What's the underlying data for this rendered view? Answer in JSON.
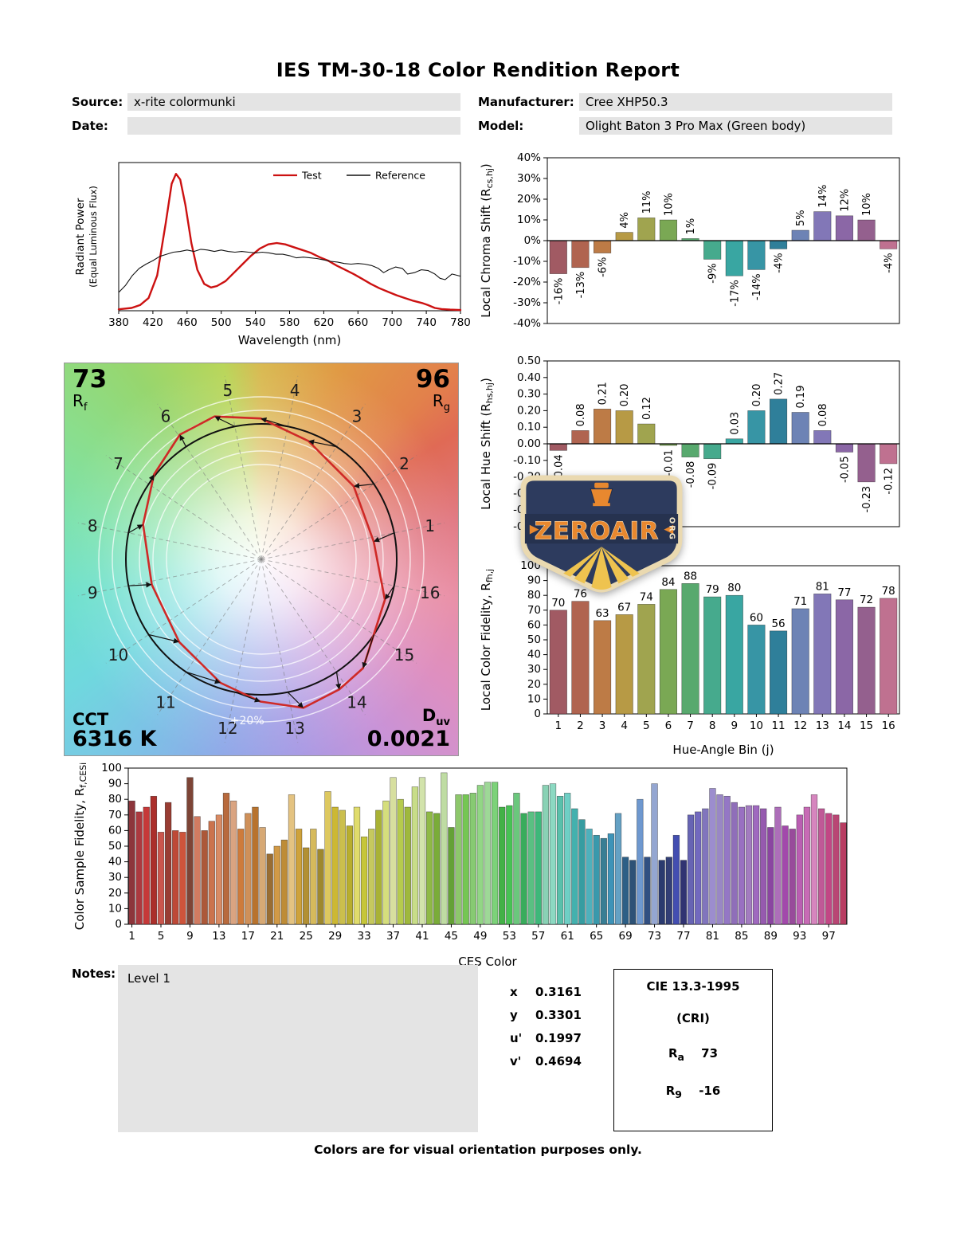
{
  "report": {
    "title": "IES TM-30-18 Color Rendition Report",
    "fields": {
      "source_label": "Source:",
      "source_value": "x-rite colormunki",
      "manufacturer_label": "Manufacturer:",
      "manufacturer_value": "Cree XHP50.3",
      "date_label": "Date:",
      "date_value": "",
      "model_label": "Model:",
      "model_value": "Olight Baton 3 Pro Max (Green body)"
    },
    "notes_label": "Notes:",
    "notes_value": "Level 1",
    "footer": "Colors are for visual orientation purposes only."
  },
  "cvg": {
    "rf_value": "73",
    "rf_sym": "R",
    "rf_sub": "f",
    "rg_value": "96",
    "rg_sym": "R",
    "rg_sub": "g",
    "cct_label": "CCT",
    "cct_value": "6316 K",
    "duv_sym": "D",
    "duv_sub": "uv",
    "duv_value": "0.0021",
    "ring_label": "+20%",
    "bins": [
      1,
      2,
      3,
      4,
      5,
      6,
      7,
      8,
      9,
      10,
      11,
      12,
      13,
      14,
      15,
      16
    ],
    "reference_color": "#111111",
    "test_color": "#cf2a27"
  },
  "chromaticity": {
    "rows": [
      {
        "label": "x",
        "value": "0.3161"
      },
      {
        "label": "y",
        "value": "0.3301"
      },
      {
        "label": "u'",
        "value": "0.1997"
      },
      {
        "label": "v'",
        "value": "0.4694"
      }
    ]
  },
  "cri_box": {
    "title": "CIE 13.3-1995",
    "subtitle": "(CRI)",
    "rows": [
      {
        "sym": "R",
        "sub": "a",
        "value": "73"
      },
      {
        "sym": "R",
        "sub": "9",
        "value": "-16"
      }
    ]
  },
  "watermark": {
    "text": "ZEROAIR",
    "suffix": "ORG"
  },
  "chart_data": [
    {
      "id": "spd",
      "type": "line",
      "xlabel": "Wavelength (nm)",
      "ylabel_lines": [
        "Radiant Power",
        "(Equal Luminous Flux)"
      ],
      "xlim": [
        380,
        780
      ],
      "xtick_step": 40,
      "ylim": [
        0,
        1.05
      ],
      "legend": [
        {
          "name": "Test",
          "color": "#cc1111"
        },
        {
          "name": "Reference",
          "color": "#111111"
        }
      ],
      "series": [
        {
          "name": "Test",
          "color": "#cc1111",
          "width": 2.4,
          "points": [
            [
              380,
              0.01
            ],
            [
              395,
              0.02
            ],
            [
              405,
              0.04
            ],
            [
              415,
              0.09
            ],
            [
              425,
              0.25
            ],
            [
              435,
              0.62
            ],
            [
              442,
              0.9
            ],
            [
              447,
              0.97
            ],
            [
              452,
              0.93
            ],
            [
              458,
              0.75
            ],
            [
              465,
              0.48
            ],
            [
              472,
              0.29
            ],
            [
              480,
              0.19
            ],
            [
              488,
              0.165
            ],
            [
              495,
              0.175
            ],
            [
              505,
              0.21
            ],
            [
              515,
              0.27
            ],
            [
              525,
              0.33
            ],
            [
              535,
              0.39
            ],
            [
              545,
              0.44
            ],
            [
              555,
              0.47
            ],
            [
              565,
              0.48
            ],
            [
              575,
              0.47
            ],
            [
              585,
              0.45
            ],
            [
              595,
              0.43
            ],
            [
              605,
              0.41
            ],
            [
              615,
              0.38
            ],
            [
              625,
              0.355
            ],
            [
              635,
              0.32
            ],
            [
              645,
              0.29
            ],
            [
              655,
              0.26
            ],
            [
              665,
              0.225
            ],
            [
              675,
              0.19
            ],
            [
              685,
              0.16
            ],
            [
              695,
              0.135
            ],
            [
              705,
              0.11
            ],
            [
              715,
              0.09
            ],
            [
              725,
              0.07
            ],
            [
              735,
              0.055
            ],
            [
              742,
              0.04
            ],
            [
              750,
              0.02
            ],
            [
              758,
              0.012
            ],
            [
              768,
              0.008
            ],
            [
              780,
              0.005
            ]
          ]
        },
        {
          "name": "Reference",
          "color": "#111111",
          "width": 1.1,
          "points": [
            [
              380,
              0.13
            ],
            [
              388,
              0.18
            ],
            [
              396,
              0.25
            ],
            [
              404,
              0.3
            ],
            [
              412,
              0.33
            ],
            [
              420,
              0.355
            ],
            [
              428,
              0.385
            ],
            [
              436,
              0.4
            ],
            [
              444,
              0.415
            ],
            [
              452,
              0.42
            ],
            [
              460,
              0.43
            ],
            [
              468,
              0.42
            ],
            [
              476,
              0.435
            ],
            [
              484,
              0.43
            ],
            [
              492,
              0.42
            ],
            [
              500,
              0.43
            ],
            [
              508,
              0.42
            ],
            [
              516,
              0.415
            ],
            [
              524,
              0.42
            ],
            [
              532,
              0.415
            ],
            [
              540,
              0.41
            ],
            [
              548,
              0.415
            ],
            [
              556,
              0.41
            ],
            [
              564,
              0.4
            ],
            [
              572,
              0.4
            ],
            [
              580,
              0.39
            ],
            [
              588,
              0.375
            ],
            [
              596,
              0.38
            ],
            [
              604,
              0.375
            ],
            [
              612,
              0.37
            ],
            [
              620,
              0.36
            ],
            [
              628,
              0.35
            ],
            [
              636,
              0.345
            ],
            [
              644,
              0.335
            ],
            [
              652,
              0.33
            ],
            [
              660,
              0.335
            ],
            [
              668,
              0.33
            ],
            [
              676,
              0.32
            ],
            [
              684,
              0.3
            ],
            [
              690,
              0.27
            ],
            [
              696,
              0.29
            ],
            [
              704,
              0.31
            ],
            [
              712,
              0.3
            ],
            [
              718,
              0.26
            ],
            [
              726,
              0.27
            ],
            [
              734,
              0.29
            ],
            [
              742,
              0.285
            ],
            [
              750,
              0.26
            ],
            [
              756,
              0.23
            ],
            [
              762,
              0.22
            ],
            [
              770,
              0.26
            ],
            [
              780,
              0.245
            ]
          ]
        }
      ]
    },
    {
      "id": "chroma",
      "type": "bar",
      "ylabel_parts": [
        {
          "t": "Local Chroma Shift (R"
        },
        {
          "t": "cs,hj",
          "sub": true
        },
        {
          "t": ")"
        }
      ],
      "ylim": [
        -40,
        40
      ],
      "ytick_step": 10,
      "tick_fmt": "pct",
      "categories": [
        1,
        2,
        3,
        4,
        5,
        6,
        7,
        8,
        9,
        10,
        11,
        12,
        13,
        14,
        15,
        16
      ],
      "values": [
        -16,
        -13,
        -6,
        4,
        11,
        10,
        1,
        -9,
        -17,
        -14,
        -4,
        5,
        14,
        12,
        10,
        -4
      ],
      "labels": [
        "-16%",
        "-13%",
        "-6%",
        "4%",
        "11%",
        "10%",
        "1%",
        "-9%",
        "-17%",
        "-14%",
        "-4%",
        "5%",
        "14%",
        "12%",
        "10%",
        "-4%"
      ],
      "label_style": "rot",
      "xticks": "none",
      "bar_colors": [
        "#a15a63",
        "#b06450",
        "#bd7b46",
        "#b79a45",
        "#a0a44f",
        "#7aa854",
        "#58a96e",
        "#46aa8d",
        "#39a6a2",
        "#3795a5",
        "#2f7f9a",
        "#6d83b5",
        "#8277b7",
        "#8b67a6",
        "#94608e",
        "#bf7190"
      ]
    },
    {
      "id": "hue",
      "type": "bar",
      "ylabel_parts": [
        {
          "t": "Local Hue Shift (R"
        },
        {
          "t": "hs,hj",
          "sub": true
        },
        {
          "t": ")"
        }
      ],
      "ylim": [
        -0.5,
        0.5
      ],
      "ytick_step": 0.1,
      "tick_fmt": "f2",
      "categories": [
        1,
        2,
        3,
        4,
        5,
        6,
        7,
        8,
        9,
        10,
        11,
        12,
        13,
        14,
        15,
        16
      ],
      "values": [
        -0.04,
        0.08,
        0.21,
        0.2,
        0.12,
        -0.01,
        -0.08,
        -0.09,
        0.03,
        0.2,
        0.27,
        0.19,
        0.08,
        -0.05,
        -0.23,
        -0.12
      ],
      "labels": [
        "-0.04",
        "0.08",
        "0.21",
        "0.20",
        "0.12",
        "-0.01",
        "-0.08",
        "-0.09",
        "0.03",
        "0.20",
        "0.27",
        "0.19",
        "0.08",
        "-0.05",
        "-0.23",
        "-0.12"
      ],
      "label_style": "rot",
      "xticks": "none",
      "bar_colors": [
        "#a15a63",
        "#b06450",
        "#bd7b46",
        "#b79a45",
        "#a0a44f",
        "#7aa854",
        "#58a96e",
        "#46aa8d",
        "#39a6a2",
        "#3795a5",
        "#2f7f9a",
        "#6d83b5",
        "#8277b7",
        "#8b67a6",
        "#94608e",
        "#bf7190"
      ]
    },
    {
      "id": "fidelity",
      "type": "bar",
      "ylabel_parts": [
        {
          "t": "Local Color Fidelity, R"
        },
        {
          "t": "fh,j",
          "sub": true
        }
      ],
      "xlabel": "Hue-Angle Bin (j)",
      "ylim": [
        0,
        100
      ],
      "ytick_step": 10,
      "tick_fmt": "int",
      "categories": [
        1,
        2,
        3,
        4,
        5,
        6,
        7,
        8,
        9,
        10,
        11,
        12,
        13,
        14,
        15,
        16
      ],
      "values": [
        70,
        76,
        63,
        67,
        74,
        84,
        88,
        79,
        80,
        60,
        56,
        71,
        81,
        77,
        72,
        78
      ],
      "labels": [
        "70",
        "76",
        "63",
        "67",
        "74",
        "84",
        "88",
        "79",
        "80",
        "60",
        "56",
        "71",
        "81",
        "77",
        "72",
        "78"
      ],
      "label_style": "flat",
      "xticks": "all",
      "xtick_values": [
        1,
        2,
        3,
        4,
        5,
        6,
        7,
        8,
        9,
        10,
        11,
        12,
        13,
        14,
        15,
        16
      ],
      "bar_colors": [
        "#a15a63",
        "#b06450",
        "#bd7b46",
        "#b79a45",
        "#a0a44f",
        "#7aa854",
        "#58a96e",
        "#46aa8d",
        "#39a6a2",
        "#3795a5",
        "#2f7f9a",
        "#6d83b5",
        "#8277b7",
        "#8b67a6",
        "#94608e",
        "#bf7190"
      ]
    },
    {
      "id": "ces",
      "type": "bar",
      "ylabel_parts": [
        {
          "t": "Color Sample Fidelity, R"
        },
        {
          "t": "f,CESi",
          "sub": true
        }
      ],
      "xlabel": "CES Color",
      "ylim": [
        0,
        100
      ],
      "ytick_step": 10,
      "tick_fmt": "int",
      "label_style": "none",
      "xticks": "list",
      "xtick_values": [
        1,
        5,
        9,
        13,
        17,
        21,
        25,
        29,
        33,
        37,
        41,
        45,
        49,
        53,
        57,
        61,
        65,
        69,
        73,
        77,
        81,
        85,
        89,
        93,
        97
      ],
      "values": [
        79,
        72,
        75,
        82,
        59,
        78,
        60,
        59,
        94,
        69,
        60,
        66,
        70,
        84,
        79,
        61,
        71,
        75,
        62,
        45,
        50,
        54,
        83,
        61,
        49,
        61,
        48,
        85,
        75,
        73,
        63,
        75,
        56,
        61,
        73,
        79,
        94,
        80,
        75,
        88,
        94,
        72,
        71,
        97,
        62,
        83,
        83,
        84,
        89,
        91,
        91,
        75,
        76,
        84,
        71,
        72,
        72,
        89,
        90,
        82,
        84,
        74,
        67,
        61,
        57,
        55,
        58,
        71,
        43,
        41,
        80,
        43,
        90,
        41,
        43,
        57,
        41,
        70,
        72,
        74,
        87,
        83,
        82,
        78,
        75,
        76,
        76,
        74,
        62,
        75,
        63,
        61,
        70,
        75,
        83,
        74,
        71,
        70,
        65
      ],
      "bar_colors": [
        "hsl(356,45%,38%)",
        "hsl(357,50%,45%)",
        "hsl(0,55%,50%)",
        "hsl(2,60%,42%)",
        "hsl(4,55%,55%)",
        "hsl(6,50%,40%)",
        "hsl(8,55%,48%)",
        "hsl(10,60%,52%)",
        "hsl(12,40%,35%)",
        "hsl(14,55%,60%)",
        "hsl(16,50%,45%)",
        "hsl(18,55%,55%)",
        "hsl(20,60%,62%)",
        "hsl(22,50%,48%)",
        "hsl(24,55%,68%)",
        "hsl(26,60%,52%)",
        "hsl(28,55%,58%)",
        "hsl(30,60%,45%)",
        "hsl(32,55%,65%)",
        "hsl(34,50%,40%)",
        "hsl(36,60%,55%)",
        "hsl(38,55%,48%)",
        "hsl(40,65%,70%)",
        "hsl(42,60%,52%)",
        "hsl(44,55%,45%)",
        "hsl(46,60%,60%)",
        "hsl(48,55%,40%)",
        "hsl(50,65%,62%)",
        "hsl(52,60%,50%)",
        "hsl(54,55%,55%)",
        "hsl(56,60%,45%)",
        "hsl(58,65%,65%)",
        "hsl(60,55%,50%)",
        "hsl(62,50%,58%)",
        "hsl(64,55%,45%)",
        "hsl(66,60%,68%)",
        "hsl(68,50%,75%)",
        "hsl(70,55%,55%)",
        "hsl(72,50%,48%)",
        "hsl(75,55%,70%)",
        "hsl(78,50%,78%)",
        "hsl(82,45%,50%)",
        "hsl(86,50%,45%)",
        "hsl(90,45%,75%)",
        "hsl(94,50%,42%)",
        "hsl(98,45%,60%)",
        "hsl(102,50%,55%)",
        "hsl(106,45%,62%)",
        "hsl(110,50%,68%)",
        "hsl(114,45%,72%)",
        "hsl(118,50%,65%)",
        "hsl(122,45%,48%)",
        "hsl(126,50%,52%)",
        "hsl(132,45%,60%)",
        "hsl(138,50%,45%)",
        "hsl(144,45%,55%)",
        "hsl(150,50%,48%)",
        "hsl(156,45%,68%)",
        "hsl(162,50%,70%)",
        "hsl(168,45%,55%)",
        "hsl(174,50%,62%)",
        "hsl(178,45%,48%)",
        "hsl(182,50%,42%)",
        "hsl(186,45%,52%)",
        "hsl(190,50%,45%)",
        "hsl(194,45%,40%)",
        "hsl(198,50%,48%)",
        "hsl(202,45%,58%)",
        "hsl(206,50%,35%)",
        "hsl(210,45%,32%)",
        "hsl(214,50%,62%)",
        "hsl(218,45%,35%)",
        "hsl(222,40%,70%)",
        "hsl(226,45%,30%)",
        "hsl(230,40%,33%)",
        "hsl(234,45%,48%)",
        "hsl(238,40%,32%)",
        "hsl(242,35%,55%)",
        "hsl(246,40%,58%)",
        "hsl(250,35%,60%)",
        "hsl(254,40%,68%)",
        "hsl(258,35%,65%)",
        "hsl(262,40%,62%)",
        "hsl(266,35%,58%)",
        "hsl(270,40%,60%)",
        "hsl(274,35%,62%)",
        "hsl(278,40%,58%)",
        "hsl(282,35%,52%)",
        "hsl(286,40%,45%)",
        "hsl(290,35%,58%)",
        "hsl(294,40%,48%)",
        "hsl(298,35%,45%)",
        "hsl(305,40%,55%)",
        "hsl(312,45%,60%)",
        "hsl(318,50%,68%)",
        "hsl(324,45%,55%)",
        "hsl(330,50%,52%)",
        "hsl(336,45%,50%)",
        "hsl(342,50%,48%)"
      ]
    }
  ]
}
